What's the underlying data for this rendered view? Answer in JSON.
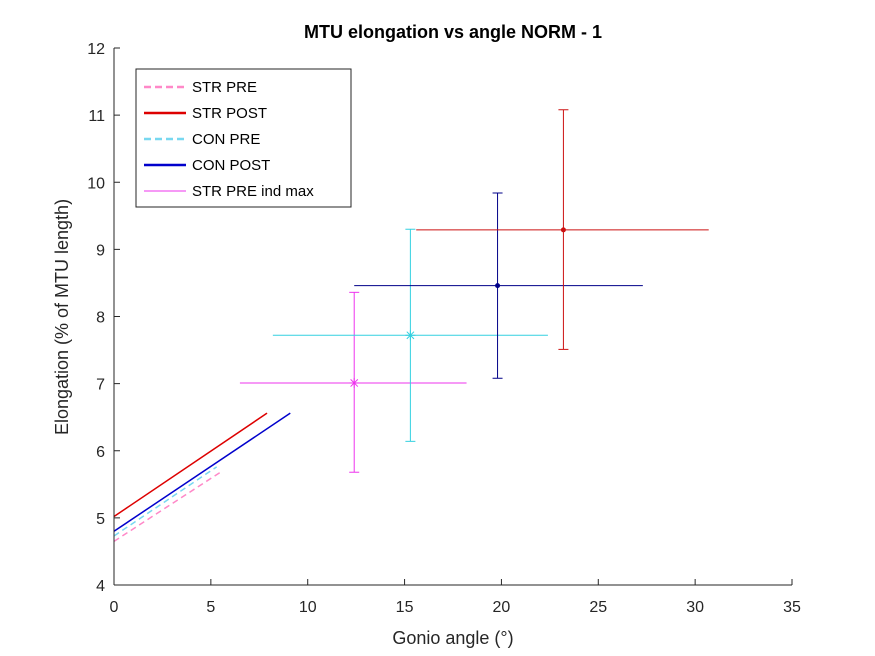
{
  "chart_data": {
    "type": "scatter",
    "title": "MTU elongation vs angle NORM - 1",
    "xlabel": "Gonio angle (°)",
    "ylabel": "Elongation (% of MTU length)",
    "xlim": [
      0,
      35
    ],
    "ylim": [
      4,
      12
    ],
    "xticks": [
      0,
      5,
      10,
      15,
      20,
      25,
      30,
      35
    ],
    "yticks": [
      4,
      5,
      6,
      7,
      8,
      9,
      10,
      11,
      12
    ],
    "grid": false,
    "legend_position": "top-left",
    "series": [
      {
        "name": "STR PRE",
        "kind": "line",
        "style": "dashed",
        "color": "#ff88c8",
        "x": [
          0,
          5.6
        ],
        "y": [
          4.65,
          5.7
        ]
      },
      {
        "name": "STR POST",
        "kind": "line",
        "style": "solid",
        "color": "#dd0000",
        "x": [
          0,
          7.9
        ],
        "y": [
          5.02,
          6.56
        ]
      },
      {
        "name": "CON PRE",
        "kind": "line",
        "style": "dashed",
        "color": "#78d8f0",
        "x": [
          0,
          5.3
        ],
        "y": [
          4.73,
          5.76
        ]
      },
      {
        "name": "CON POST",
        "kind": "line",
        "style": "solid",
        "color": "#0000cc",
        "x": [
          0,
          9.1
        ],
        "y": [
          4.8,
          6.56
        ]
      },
      {
        "name": "STR PRE ind max",
        "kind": "errorbar",
        "marker": "star",
        "color": "#ee33ee",
        "x": 12.4,
        "y": 7.01,
        "xerr": [
          6.5,
          18.2
        ],
        "yerr": [
          5.68,
          8.36
        ]
      }
    ],
    "unlabeled_errorbars": [
      {
        "marker": "star",
        "color": "#33d0e0",
        "x": 15.3,
        "y": 7.72,
        "xerr": [
          8.2,
          22.4
        ],
        "yerr": [
          6.14,
          9.3
        ]
      },
      {
        "marker": "dot",
        "color": "#000088",
        "x": 19.8,
        "y": 8.46,
        "xerr": [
          12.4,
          27.3
        ],
        "yerr": [
          7.08,
          9.84
        ]
      },
      {
        "marker": "dot",
        "color": "#cc1111",
        "x": 23.2,
        "y": 9.29,
        "xerr": [
          15.6,
          30.7
        ],
        "yerr": [
          7.51,
          11.08
        ]
      }
    ]
  }
}
